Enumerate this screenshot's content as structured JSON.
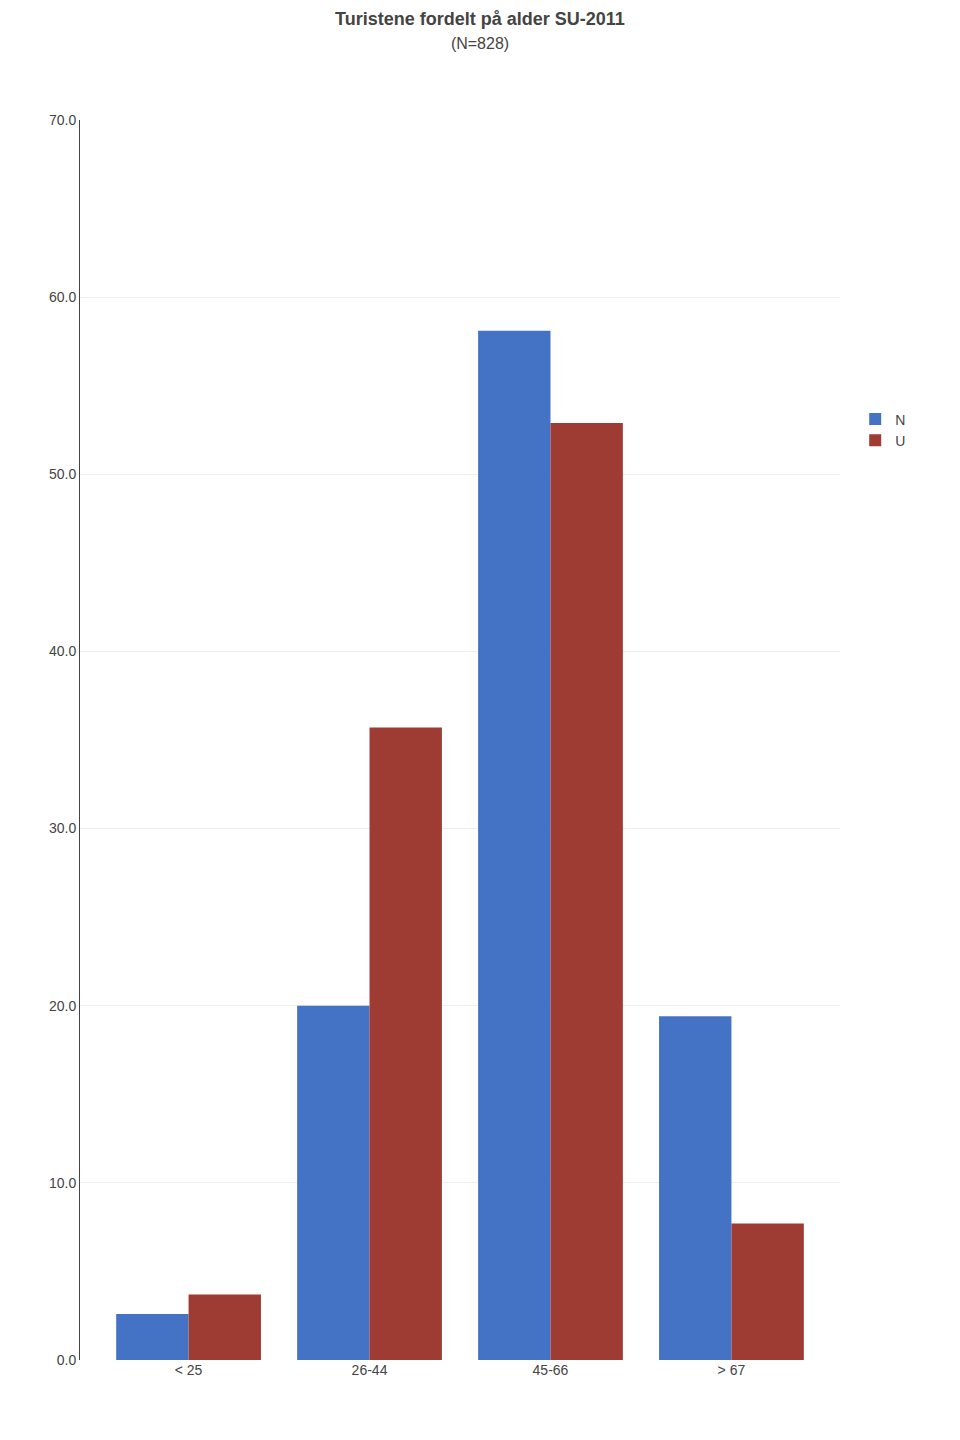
{
  "chart_data": {
    "type": "bar",
    "title": "Turistene fordelt på alder SU-2011",
    "subtitle": "(N=828)",
    "categories": [
      "< 25",
      "26-44",
      "45-66",
      "> 67"
    ],
    "series": [
      {
        "name": "N",
        "color": "#4472C4",
        "values": [
          2.6,
          20.0,
          58.1,
          19.4
        ]
      },
      {
        "name": "U",
        "color": "#9E3B32",
        "values": [
          3.7,
          35.7,
          52.9,
          7.7
        ]
      }
    ],
    "ylim": [
      0,
      70
    ],
    "yticks": [
      {
        "value": 0,
        "label": "0.0"
      },
      {
        "value": 10,
        "label": "10.0"
      },
      {
        "value": 20,
        "label": "20.0"
      },
      {
        "value": 30,
        "label": "30.0"
      },
      {
        "value": 40,
        "label": "40.0"
      },
      {
        "value": 50,
        "label": "50.0"
      },
      {
        "value": 60,
        "label": "60.0"
      },
      {
        "value": 70,
        "label": "70.0"
      }
    ],
    "grid": true,
    "legend": "right"
  }
}
